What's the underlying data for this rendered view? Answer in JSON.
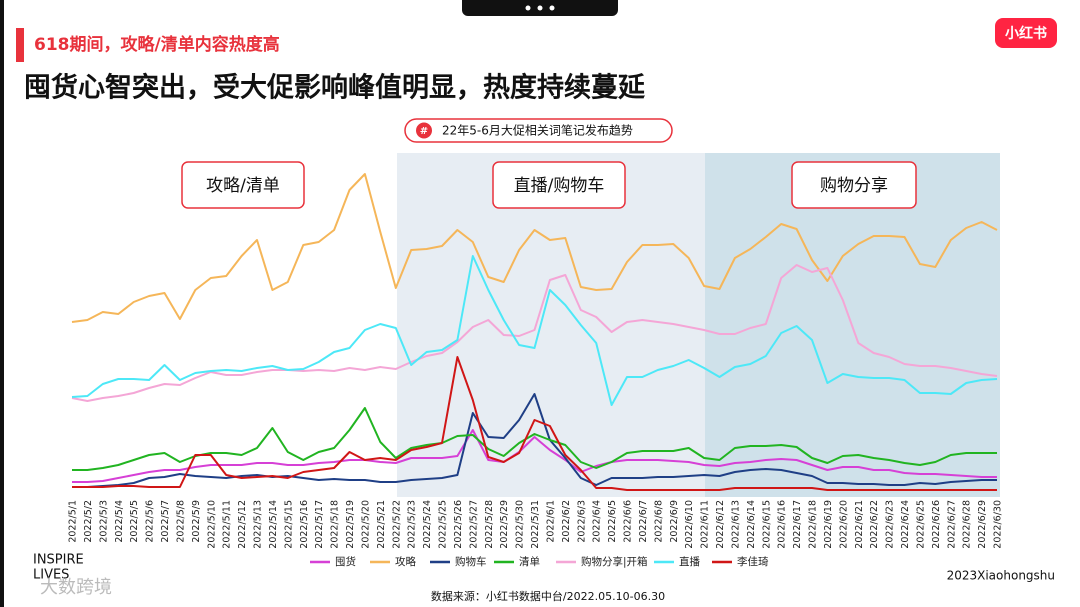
{
  "header": {
    "kicker": "618期间，攻略/清单内容热度高",
    "title": "囤货心智突出，受大促影响峰值明显，热度持续蔓延",
    "logo": "小红书"
  },
  "chart_data": {
    "type": "line",
    "badge": "#",
    "title": "22年5-6月大促相关词笔记发布趋势",
    "annotations": [
      "攻略/清单",
      "直播/购物车",
      "购物分享"
    ],
    "categories": [
      "2022/5/1",
      "2022/5/2",
      "2022/5/3",
      "2022/5/4",
      "2022/5/5",
      "2022/5/6",
      "2022/5/7",
      "2022/5/8",
      "2022/5/9",
      "2022/5/10",
      "2022/5/11",
      "2022/5/12",
      "2022/5/13",
      "2022/5/14",
      "2022/5/15",
      "2022/5/16",
      "2022/5/17",
      "2022/5/18",
      "2022/5/19",
      "2022/5/20",
      "2022/5/21",
      "2022/5/22",
      "2022/5/23",
      "2022/5/24",
      "2022/5/25",
      "2022/5/26",
      "2022/5/27",
      "2022/5/28",
      "2022/5/29",
      "2022/5/30",
      "2022/5/31",
      "2022/6/1",
      "2022/6/2",
      "2022/6/3",
      "2022/6/4",
      "2022/6/5",
      "2022/6/6",
      "2022/6/7",
      "2022/6/8",
      "2022/6/9",
      "2022/6/10",
      "2022/6/11",
      "2022/6/12",
      "2022/6/13",
      "2022/6/14",
      "2022/6/15",
      "2022/6/16",
      "2022/6/17",
      "2022/6/18",
      "2022/6/19",
      "2022/6/20",
      "2022/6/21",
      "2022/6/22",
      "2022/6/23",
      "2022/6/24",
      "2022/6/25",
      "2022/6/26",
      "2022/6/27",
      "2022/6/28",
      "2022/6/29",
      "2022/6/30"
    ],
    "ylim": [
      0,
      350
    ],
    "series": [
      {
        "name": "囤货",
        "color": "#d640d6",
        "values": [
          13,
          13,
          14,
          17,
          20,
          23,
          25,
          25,
          28,
          30,
          30,
          30,
          32,
          32,
          30,
          30,
          32,
          33,
          35,
          35,
          33,
          32,
          37,
          37,
          37,
          39,
          65,
          35,
          33,
          43,
          58,
          45,
          35,
          23,
          29,
          33,
          35,
          35,
          35,
          34,
          33,
          30,
          29,
          32,
          33,
          35,
          36,
          35,
          30,
          25,
          28,
          28,
          25,
          25,
          22,
          21,
          21,
          20,
          19,
          18,
          18
        ]
      },
      {
        "name": "攻略",
        "color": "#f5b659",
        "values": [
          173,
          175,
          183,
          181,
          193,
          199,
          202,
          176,
          205,
          217,
          219,
          239,
          255,
          205,
          213,
          250,
          253,
          265,
          305,
          321,
          263,
          207,
          245,
          246,
          249,
          265,
          253,
          218,
          213,
          245,
          265,
          255,
          257,
          208,
          205,
          206,
          233,
          250,
          250,
          251,
          237,
          209,
          206,
          237,
          246,
          258,
          271,
          266,
          235,
          214,
          239,
          251,
          259,
          259,
          258,
          231,
          228,
          255,
          267,
          273,
          265
        ]
      },
      {
        "name": "购物车",
        "color": "#1f3f86",
        "values": [
          8,
          8,
          9,
          10,
          12,
          17,
          18,
          21,
          19,
          18,
          17,
          19,
          20,
          18,
          19,
          17,
          15,
          16,
          15,
          15,
          13,
          13,
          15,
          16,
          17,
          20,
          82,
          58,
          57,
          75,
          101,
          55,
          37,
          17,
          10,
          17,
          17,
          17,
          18,
          18,
          19,
          20,
          19,
          23,
          25,
          26,
          25,
          22,
          19,
          12,
          12,
          11,
          11,
          10,
          10,
          12,
          11,
          13,
          14,
          15,
          15
        ]
      },
      {
        "name": "清单",
        "color": "#21b421",
        "values": [
          25,
          25,
          27,
          30,
          35,
          40,
          42,
          33,
          39,
          42,
          42,
          40,
          47,
          67,
          43,
          35,
          43,
          47,
          65,
          87,
          53,
          37,
          47,
          50,
          52,
          59,
          60,
          46,
          39,
          52,
          61,
          55,
          50,
          33,
          27,
          33,
          42,
          44,
          44,
          44,
          47,
          37,
          35,
          47,
          49,
          49,
          50,
          48,
          37,
          32,
          39,
          40,
          37,
          35,
          32,
          30,
          33,
          40,
          42,
          42,
          42
        ]
      },
      {
        "name": "购物分享|开箱",
        "color": "#f4a6d6",
        "values": [
          97,
          94,
          97,
          99,
          102,
          107,
          111,
          110,
          117,
          123,
          120,
          120,
          123,
          125,
          125,
          124,
          125,
          124,
          127,
          125,
          128,
          126,
          133,
          139,
          142,
          153,
          168,
          175,
          160,
          159,
          165,
          215,
          220,
          185,
          178,
          163,
          173,
          175,
          173,
          171,
          168,
          165,
          161,
          161,
          167,
          171,
          217,
          230,
          223,
          227,
          195,
          152,
          142,
          138,
          131,
          129,
          129,
          127,
          124,
          121,
          119
        ]
      },
      {
        "name": "直播",
        "color": "#4de8f7",
        "values": [
          98,
          99,
          111,
          116,
          116,
          115,
          130,
          115,
          122,
          124,
          125,
          124,
          127,
          129,
          125,
          126,
          133,
          143,
          147,
          165,
          171,
          167,
          130,
          143,
          145,
          155,
          239,
          205,
          175,
          150,
          147,
          205,
          190,
          170,
          152,
          90,
          118,
          118,
          125,
          129,
          135,
          127,
          118,
          128,
          131,
          139,
          162,
          169,
          155,
          112,
          121,
          118,
          117,
          117,
          115,
          102,
          102,
          101,
          112,
          115,
          116
        ]
      },
      {
        "name": "李佳琦",
        "color": "#d01616",
        "values": [
          8,
          8,
          8,
          9,
          9,
          8,
          8,
          8,
          40,
          40,
          20,
          17,
          18,
          19,
          17,
          23,
          25,
          27,
          43,
          35,
          37,
          35,
          45,
          48,
          52,
          138,
          95,
          38,
          33,
          42,
          75,
          69,
          40,
          25,
          7,
          7,
          5,
          5,
          5,
          5,
          5,
          5,
          5,
          7,
          7,
          7,
          7,
          7,
          7,
          5,
          5,
          5,
          5,
          5,
          5,
          5,
          5,
          5,
          5,
          5,
          5
        ]
      }
    ]
  },
  "footer": {
    "brand_line1": "INSPIRE",
    "brand_line2": "LIVES",
    "copyright": "2023Xiaohongshu",
    "source": "数据来源：小红书数据中台/2022.05.10-06.30",
    "watermark": "大数跨境"
  }
}
